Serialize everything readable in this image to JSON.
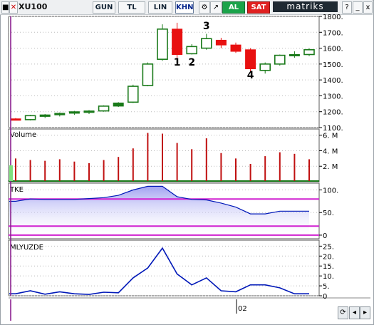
{
  "toolbar": {
    "symbol": "XU100",
    "buttons": [
      "GUN",
      "TL",
      "LIN",
      "KHN"
    ],
    "selected": "KHN",
    "buy_label": "AL",
    "sell_label": "SAT",
    "brand": "matriks"
  },
  "colors": {
    "up": "#1a7a1a",
    "down": "#e81010",
    "cross": "#e81010",
    "volume": "#c01010",
    "tke_line": "#0018b8",
    "tke_fill": "#9898f0",
    "tke_band": "#d020d0",
    "mly_line": "#0018b8",
    "grid": "#bcbcbc",
    "cursor": "#8a2090"
  },
  "chart_data": [
    {
      "type": "candlestick",
      "ylim": [
        1100,
        1800
      ],
      "yticks": [
        "1100.",
        "1200.",
        "1300.",
        "1400.",
        "1500.",
        "1600.",
        "1700.",
        "1800."
      ],
      "candles": [
        {
          "o": 1155,
          "h": 1160,
          "l": 1145,
          "c": 1155
        },
        {
          "o": 1150,
          "h": 1180,
          "l": 1145,
          "c": 1175
        },
        {
          "o": 1170,
          "h": 1185,
          "l": 1160,
          "c": 1180
        },
        {
          "o": 1180,
          "h": 1195,
          "l": 1170,
          "c": 1190
        },
        {
          "o": 1190,
          "h": 1205,
          "l": 1180,
          "c": 1200
        },
        {
          "o": 1195,
          "h": 1210,
          "l": 1185,
          "c": 1205
        },
        {
          "o": 1205,
          "h": 1240,
          "l": 1200,
          "c": 1235
        },
        {
          "o": 1235,
          "h": 1260,
          "l": 1230,
          "c": 1255
        },
        {
          "o": 1260,
          "h": 1370,
          "l": 1255,
          "c": 1360
        },
        {
          "o": 1365,
          "h": 1510,
          "l": 1360,
          "c": 1500
        },
        {
          "o": 1530,
          "h": 1750,
          "l": 1520,
          "c": 1720
        },
        {
          "o": 1720,
          "h": 1760,
          "l": 1540,
          "c": 1560
        },
        {
          "o": 1565,
          "h": 1625,
          "l": 1560,
          "c": 1610
        },
        {
          "o": 1600,
          "h": 1690,
          "l": 1590,
          "c": 1660
        },
        {
          "o": 1650,
          "h": 1665,
          "l": 1600,
          "c": 1620
        },
        {
          "o": 1620,
          "h": 1635,
          "l": 1570,
          "c": 1580
        },
        {
          "o": 1590,
          "h": 1600,
          "l": 1450,
          "c": 1470
        },
        {
          "o": 1460,
          "h": 1510,
          "l": 1440,
          "c": 1500
        },
        {
          "o": 1500,
          "h": 1560,
          "l": 1490,
          "c": 1555
        },
        {
          "o": 1555,
          "h": 1580,
          "l": 1540,
          "c": 1560
        },
        {
          "o": 1560,
          "h": 1600,
          "l": 1550,
          "c": 1590
        }
      ],
      "annotations": [
        {
          "text": "1",
          "candle": 11,
          "price": 1490
        },
        {
          "text": "2",
          "candle": 12,
          "price": 1490
        },
        {
          "text": "3",
          "candle": 13,
          "price": 1720
        },
        {
          "text": "4",
          "candle": 16,
          "price": 1410
        }
      ]
    },
    {
      "type": "bar",
      "title": "Volume",
      "ylim": [
        0,
        6.8
      ],
      "yticks": [
        "2. M",
        "4. M",
        "6. M"
      ],
      "values": [
        3.0,
        2.8,
        2.7,
        2.9,
        2.6,
        2.4,
        2.8,
        3.2,
        4.3,
        6.3,
        6.2,
        5.0,
        4.2,
        5.6,
        3.7,
        3.0,
        2.3,
        3.3,
        3.8,
        3.6,
        2.9
      ]
    },
    {
      "type": "area",
      "title": "TKE",
      "ylim": [
        -8,
        115
      ],
      "yticks": [
        "0",
        "50.",
        "100."
      ],
      "bands": [
        0,
        20,
        80
      ],
      "values": [
        75,
        80,
        79,
        79,
        79,
        81,
        83,
        88,
        100,
        108,
        108,
        85,
        79,
        78,
        71,
        62,
        47,
        47,
        53,
        53,
        53
      ]
    },
    {
      "type": "line",
      "title": "MLYUZDE",
      "ylim": [
        0,
        28
      ],
      "yticks": [
        "0",
        "5.",
        "10.",
        "15.",
        "20.",
        "25."
      ],
      "values": [
        1.0,
        2.5,
        0.8,
        2.0,
        1.0,
        0.7,
        1.8,
        1.5,
        9.0,
        14.0,
        24.0,
        11.0,
        5.5,
        9.0,
        2.5,
        2.0,
        5.5,
        5.5,
        4.0,
        1.0,
        1.0
      ],
      "x_tick_label": "02"
    }
  ]
}
